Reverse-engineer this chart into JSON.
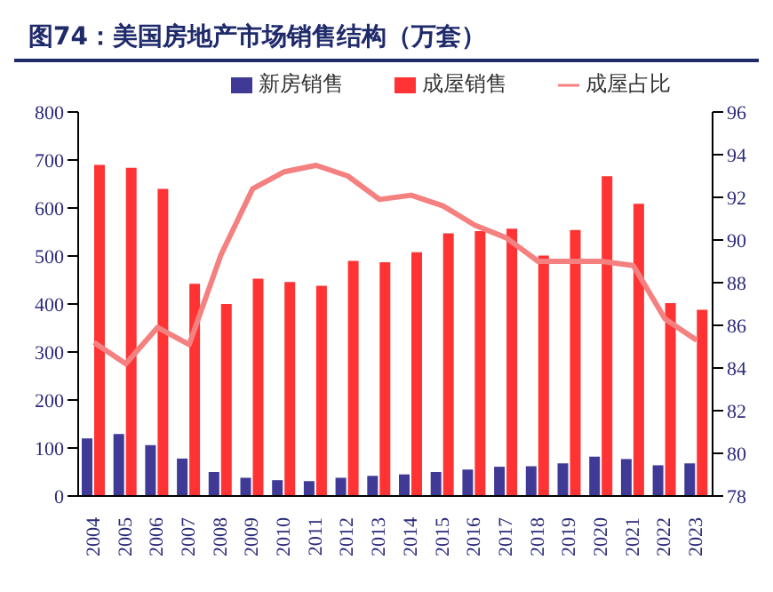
{
  "chart_data": {
    "type": "bar",
    "title": "图74：美国房地产市场销售结构（万套）",
    "categories": [
      "2004",
      "2005",
      "2006",
      "2007",
      "2008",
      "2009",
      "2010",
      "2011",
      "2012",
      "2013",
      "2014",
      "2015",
      "2016",
      "2017",
      "2018",
      "2019",
      "2020",
      "2021",
      "2022",
      "2023"
    ],
    "series": [
      {
        "name": "新房销售",
        "color": "#3f3a96",
        "values": [
          120,
          129,
          106,
          78,
          50,
          38,
          33,
          31,
          38,
          42,
          45,
          50,
          55,
          61,
          62,
          68,
          82,
          77,
          64,
          68
        ]
      },
      {
        "name": "成屋销售",
        "color": "#ff3333",
        "values": [
          690,
          684,
          640,
          442,
          400,
          453,
          446,
          438,
          490,
          487,
          508,
          547,
          552,
          557,
          501,
          554,
          666,
          609,
          402,
          388
        ]
      },
      {
        "name": "成屋占比",
        "type": "line",
        "axis": "y2",
        "color": "#f58080",
        "values": [
          85.2,
          84.2,
          85.9,
          85.1,
          89.3,
          92.4,
          93.2,
          93.5,
          93.0,
          91.9,
          92.1,
          91.6,
          90.7,
          90.1,
          89.0,
          89.0,
          89.0,
          88.8,
          86.3,
          85.3
        ]
      }
    ],
    "ylim": [
      0,
      800
    ],
    "yticks": [
      0,
      100,
      200,
      300,
      400,
      500,
      600,
      700,
      800
    ],
    "y2lim": [
      78,
      96
    ],
    "y2ticks": [
      78,
      80,
      82,
      84,
      86,
      88,
      90,
      92,
      94,
      96
    ],
    "legend": "top",
    "marker": "none"
  }
}
